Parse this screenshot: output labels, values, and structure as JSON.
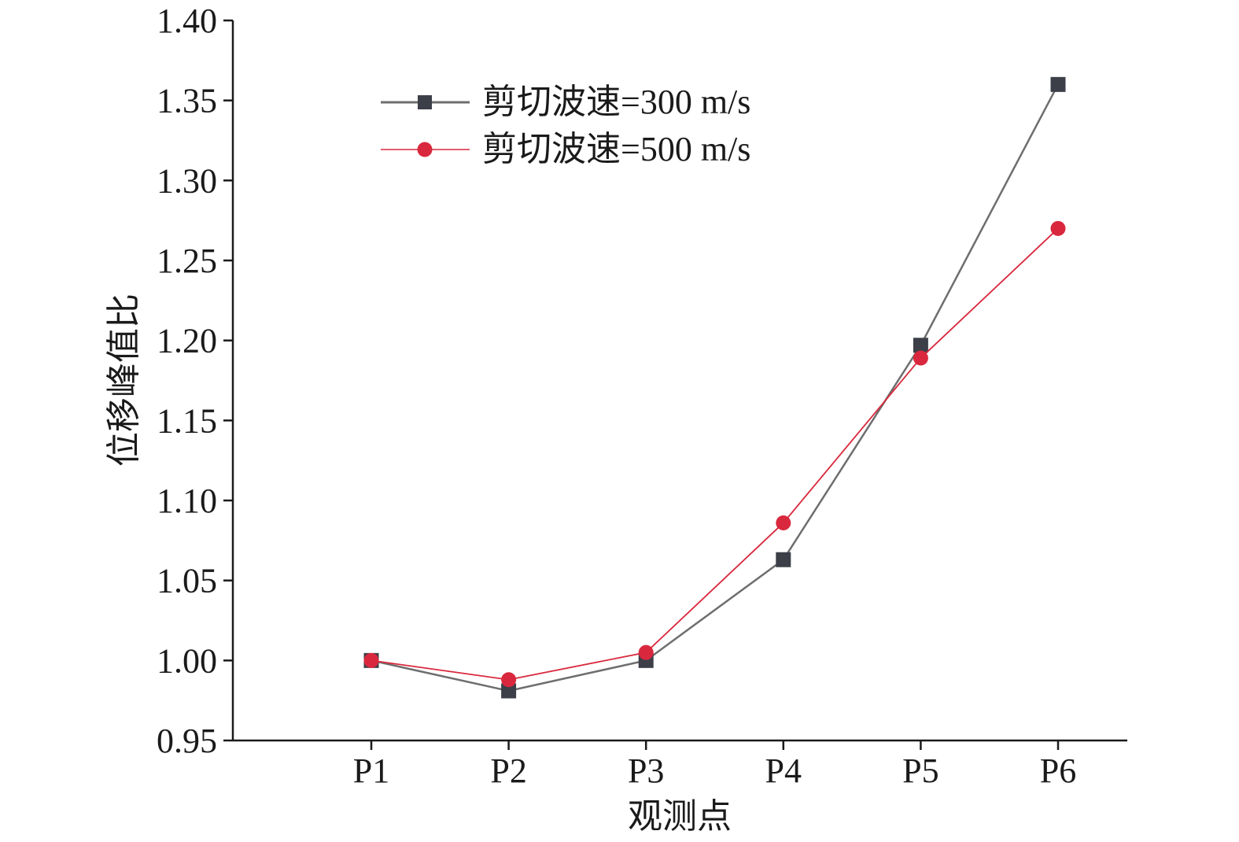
{
  "chart_data": {
    "type": "line",
    "title": "",
    "xlabel": "观测点",
    "ylabel": "位移峰值比",
    "categories": [
      "P1",
      "P2",
      "P3",
      "P4",
      "P5",
      "P6"
    ],
    "ylim": [
      0.95,
      1.4
    ],
    "yticks": [
      "0.95",
      "1.00",
      "1.05",
      "1.10",
      "1.15",
      "1.20",
      "1.25",
      "1.30",
      "1.35",
      "1.40"
    ],
    "grid": false,
    "legend_position": "top-left",
    "series": [
      {
        "name": "剪切波速=300 m/s",
        "values": [
          1.0,
          0.981,
          1.0,
          1.063,
          1.197,
          1.36
        ],
        "color": "#3d3f48",
        "line_color": "#6e6e6e",
        "marker": "square"
      },
      {
        "name": "剪切波速=500 m/s",
        "values": [
          1.0,
          0.988,
          1.005,
          1.086,
          1.189,
          1.27
        ],
        "color": "#d9283d",
        "line_color": "#d9283d",
        "marker": "circle"
      }
    ]
  }
}
